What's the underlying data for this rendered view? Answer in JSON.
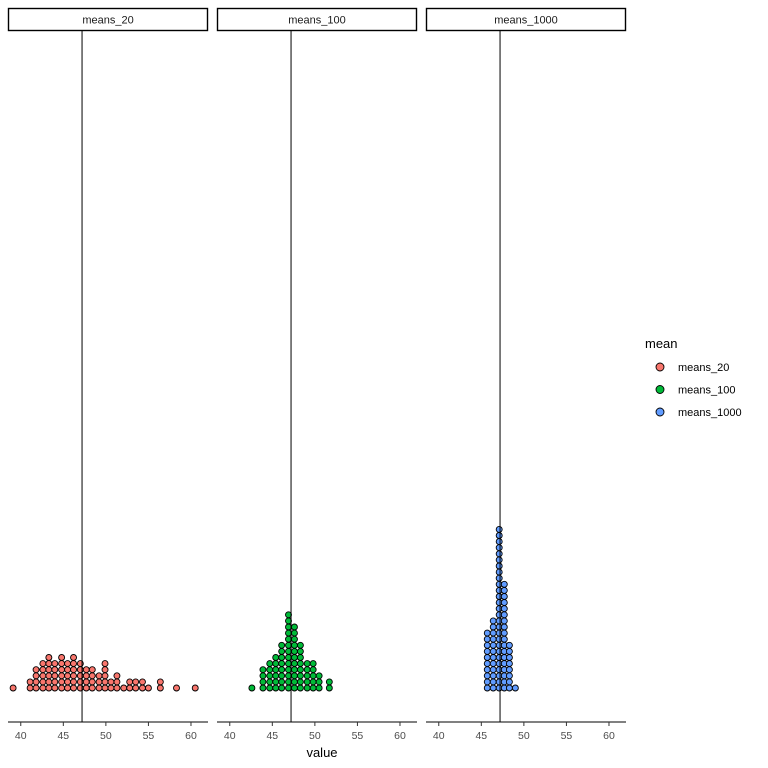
{
  "chart_data": {
    "type": "dotplot",
    "facet_by": "mean",
    "panels": [
      {
        "name": "means_20",
        "color": "#F8766D",
        "mean_line": 47.2,
        "bins": [
          {
            "x": 39.1,
            "count": 1
          },
          {
            "x": 41.1,
            "count": 2
          },
          {
            "x": 41.8,
            "count": 4
          },
          {
            "x": 42.6,
            "count": 5
          },
          {
            "x": 43.3,
            "count": 6
          },
          {
            "x": 44.0,
            "count": 5
          },
          {
            "x": 44.8,
            "count": 6
          },
          {
            "x": 45.5,
            "count": 5
          },
          {
            "x": 46.2,
            "count": 6
          },
          {
            "x": 47.0,
            "count": 5
          },
          {
            "x": 47.7,
            "count": 4
          },
          {
            "x": 48.4,
            "count": 4
          },
          {
            "x": 49.2,
            "count": 3
          },
          {
            "x": 49.9,
            "count": 5
          },
          {
            "x": 50.6,
            "count": 2
          },
          {
            "x": 51.3,
            "count": 3
          },
          {
            "x": 52.1,
            "count": 1
          },
          {
            "x": 52.8,
            "count": 2
          },
          {
            "x": 53.5,
            "count": 2
          },
          {
            "x": 54.3,
            "count": 2
          },
          {
            "x": 55.0,
            "count": 1
          },
          {
            "x": 56.4,
            "count": 2
          },
          {
            "x": 58.3,
            "count": 1
          },
          {
            "x": 60.5,
            "count": 1
          }
        ]
      },
      {
        "name": "means_100",
        "color": "#00BA38",
        "mean_line": 47.2,
        "bins": [
          {
            "x": 42.6,
            "count": 1
          },
          {
            "x": 43.9,
            "count": 4
          },
          {
            "x": 44.7,
            "count": 5
          },
          {
            "x": 45.4,
            "count": 6
          },
          {
            "x": 46.1,
            "count": 8
          },
          {
            "x": 46.9,
            "count": 13
          },
          {
            "x": 47.6,
            "count": 11
          },
          {
            "x": 48.3,
            "count": 8
          },
          {
            "x": 49.1,
            "count": 5
          },
          {
            "x": 49.8,
            "count": 5
          },
          {
            "x": 50.5,
            "count": 3
          },
          {
            "x": 51.7,
            "count": 2
          }
        ]
      },
      {
        "name": "means_1000",
        "color": "#619CFF",
        "mean_line": 47.2,
        "bins": [
          {
            "x": 45.7,
            "count": 10
          },
          {
            "x": 46.4,
            "count": 12
          },
          {
            "x": 47.1,
            "count": 27
          },
          {
            "x": 47.7,
            "count": 18
          },
          {
            "x": 48.3,
            "count": 8
          },
          {
            "x": 49.0,
            "count": 1
          }
        ]
      }
    ],
    "xlim": [
      38.5,
      62
    ],
    "xticks": [
      40,
      45,
      50,
      55,
      60
    ],
    "xlabel": "value",
    "ylabel": "",
    "grid": false,
    "legend": {
      "title": "mean",
      "placement": "right",
      "entries": [
        "means_20",
        "means_100",
        "means_1000"
      ]
    }
  }
}
